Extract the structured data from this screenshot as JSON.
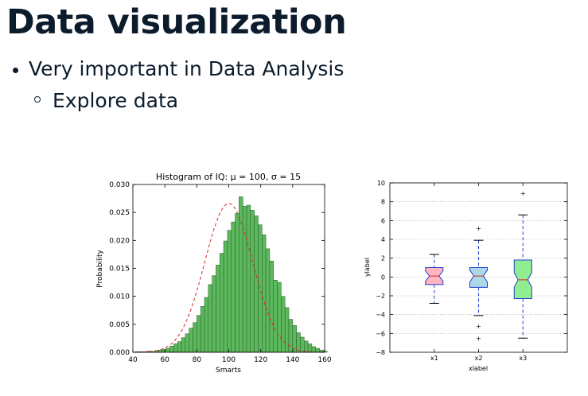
{
  "slide": {
    "title": "Data visualization",
    "bullets": [
      {
        "text": "Very important in Data Analysis",
        "level": 1
      },
      {
        "text": "Explore data",
        "level": 2
      }
    ]
  },
  "chart_data": [
    {
      "type": "bar",
      "title": "Histogram of IQ: μ = 100, σ = 15",
      "xlabel": "Smarts",
      "ylabel": "Probability",
      "xlim": [
        40,
        160
      ],
      "ylim": [
        0,
        0.03
      ],
      "xticks": [
        "40",
        "60",
        "80",
        "100",
        "120",
        "140",
        "160"
      ],
      "yticks": [
        "0.000",
        "0.005",
        "0.010",
        "0.015",
        "0.020",
        "0.025",
        "0.030"
      ],
      "bin_width": 2.4,
      "bins_start": 41.6,
      "values": [
        0.0001,
        0.0001,
        0.0001,
        0.0002,
        0.0001,
        0.0003,
        0.0004,
        0.0005,
        0.0007,
        0.0011,
        0.0015,
        0.0019,
        0.0026,
        0.0033,
        0.0043,
        0.0053,
        0.0066,
        0.0082,
        0.0098,
        0.0121,
        0.0137,
        0.0156,
        0.0177,
        0.0199,
        0.0218,
        0.0233,
        0.0248,
        0.0278,
        0.0261,
        0.0263,
        0.0254,
        0.0244,
        0.0228,
        0.021,
        0.0185,
        0.0163,
        0.0129,
        0.0125,
        0.01,
        0.008,
        0.0059,
        0.0048,
        0.0035,
        0.0027,
        0.002,
        0.0015,
        0.001,
        0.0007,
        0.0004,
        0.0002
      ],
      "fit_curve": {
        "type": "normal",
        "mu": 100,
        "sigma": 15
      },
      "colors": {
        "bars": "#5cb85c",
        "bar_edge": "#2b5a2b",
        "curve": "#d62728"
      }
    },
    {
      "type": "box",
      "xlabel": "xlabel",
      "ylabel": "ylabel",
      "ylim": [
        -8,
        10
      ],
      "yticks": [
        "−8",
        "−6",
        "−4",
        "−2",
        "0",
        "2",
        "4",
        "6",
        "8",
        "10"
      ],
      "grid": true,
      "categories": [
        "x1",
        "x2",
        "x3"
      ],
      "boxes": [
        {
          "name": "x1",
          "whisker_low": -2.8,
          "q1": -0.8,
          "median": 0.1,
          "q3": 1.0,
          "whisker_high": 2.4,
          "fliers": [],
          "color": "#ffb6c1"
        },
        {
          "name": "x2",
          "whisker_low": -4.1,
          "q1": -1.1,
          "median": 0.1,
          "q3": 1.0,
          "whisker_high": 3.9,
          "fliers": [
            5.2,
            -5.2,
            -6.5
          ],
          "color": "#add8e6"
        },
        {
          "name": "x3",
          "whisker_low": -6.5,
          "q1": -2.3,
          "median": -0.3,
          "q3": 1.8,
          "whisker_high": 6.6,
          "fliers": [
            8.9
          ],
          "color": "#90ee90"
        }
      ]
    }
  ]
}
